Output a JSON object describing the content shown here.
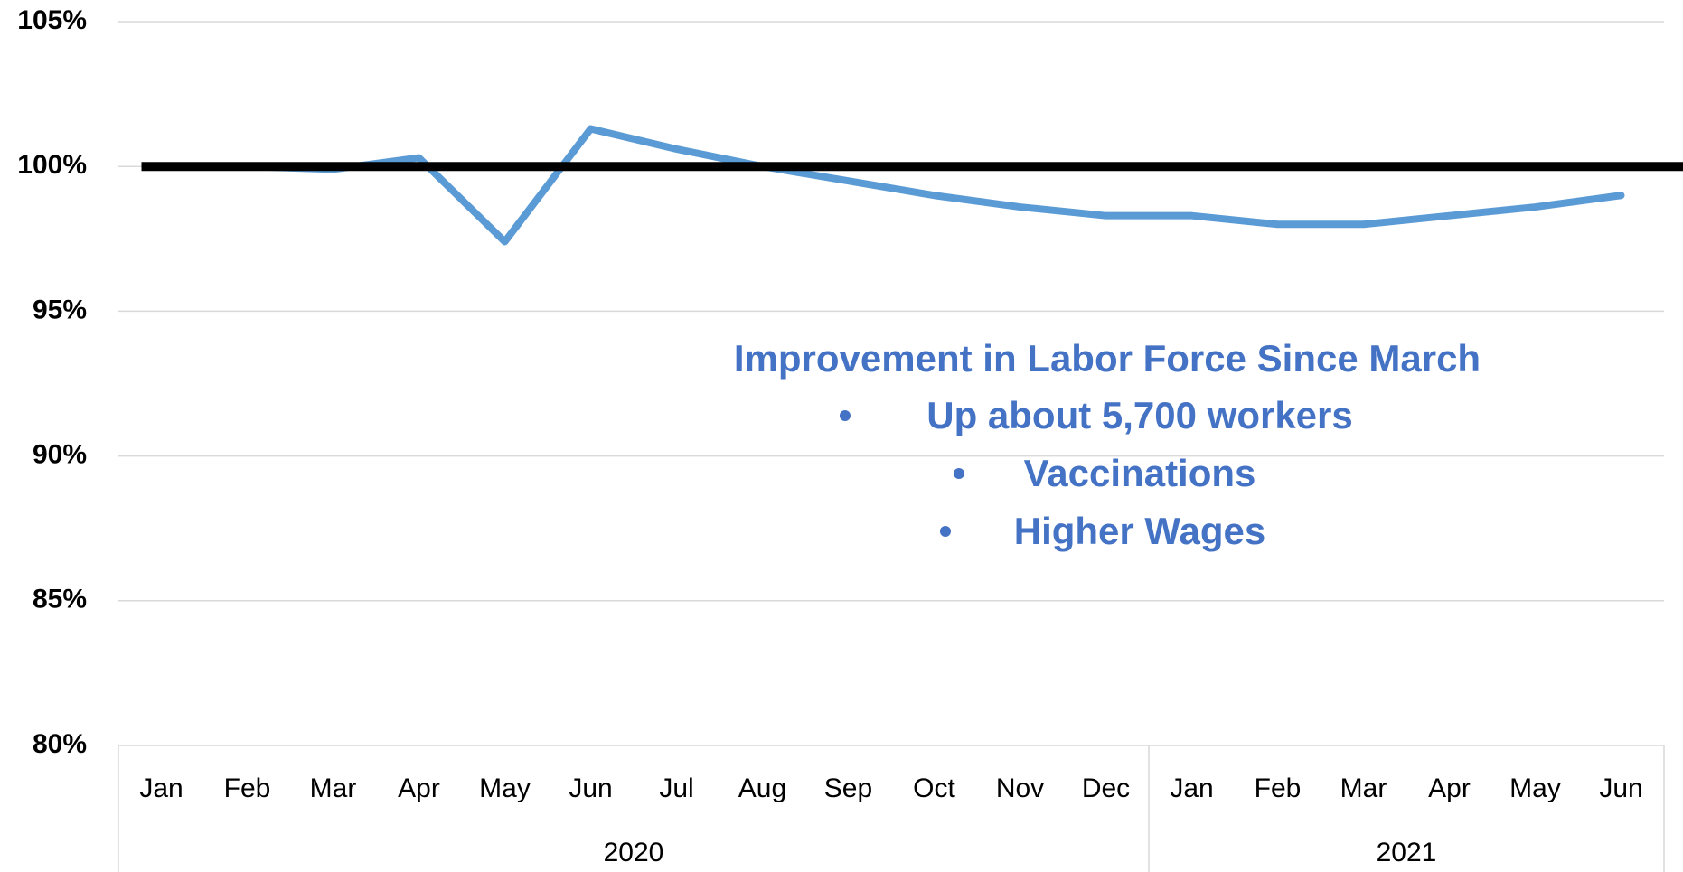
{
  "chart_data": {
    "type": "line",
    "categories": [
      "Jan",
      "Feb",
      "Mar",
      "Apr",
      "May",
      "Jun",
      "Jul",
      "Aug",
      "Sep",
      "Oct",
      "Nov",
      "Dec",
      "Jan",
      "Feb",
      "Mar",
      "Apr",
      "May",
      "Jun"
    ],
    "groups": [
      {
        "label": "2020",
        "count": 12
      },
      {
        "label": "2021",
        "count": 6
      }
    ],
    "series": [
      {
        "color": "#5b9bd5",
        "values": [
          100,
          100,
          99.9,
          100.3,
          97.4,
          101.3,
          100.6,
          100,
          99.5,
          99,
          98.6,
          98.3,
          98.3,
          98,
          98,
          98.3,
          98.6,
          99
        ]
      }
    ],
    "reference_line": {
      "value": 100,
      "color": "#000000"
    },
    "ylim": [
      80,
      105
    ],
    "yticks": [
      {
        "value": 80,
        "label": "80%"
      },
      {
        "value": 85,
        "label": "85%"
      },
      {
        "value": 90,
        "label": "90%"
      },
      {
        "value": 95,
        "label": "95%"
      },
      {
        "value": 100,
        "label": "100%"
      },
      {
        "value": 105,
        "label": "105%"
      }
    ],
    "grid": true,
    "annotation": {
      "title": "Improvement in Labor Force Since March",
      "bullets": [
        "Up about 5,700 workers",
        "Vaccinations",
        "Higher Wages"
      ]
    }
  }
}
